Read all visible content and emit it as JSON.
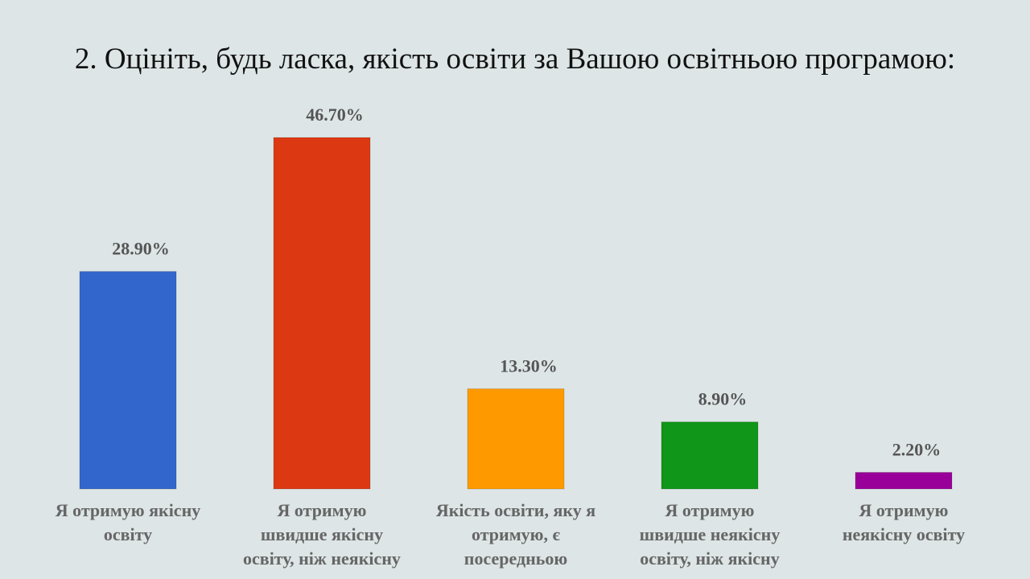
{
  "chart_data": {
    "type": "bar",
    "title": "2. Оцініть, будь ласка, якість освіти за Вашою освітньою програмою:",
    "xlabel": "",
    "ylabel": "",
    "ylim": [
      0,
      46.7
    ],
    "grid": false,
    "legend": "none",
    "categories": [
      [
        "Я отримую якісну",
        "освіту"
      ],
      [
        "Я отримую",
        "швидше якісну",
        "освіту, ніж неякісну"
      ],
      [
        "Якість освіти, яку я",
        "отримую, є",
        "посередньою"
      ],
      [
        "Я отримую",
        "швидше неякісну",
        "освіту, ніж якісну"
      ],
      [
        "Я отримую",
        "неякісну освіту"
      ]
    ],
    "values": [
      28.9,
      46.7,
      13.3,
      8.9,
      2.2
    ],
    "value_labels": [
      "28.90%",
      "46.70%",
      "13.30%",
      "8.90%",
      "2.20%"
    ],
    "colors": [
      "#3366cc",
      "#dc3912",
      "#ff9900",
      "#109618",
      "#990099"
    ]
  }
}
